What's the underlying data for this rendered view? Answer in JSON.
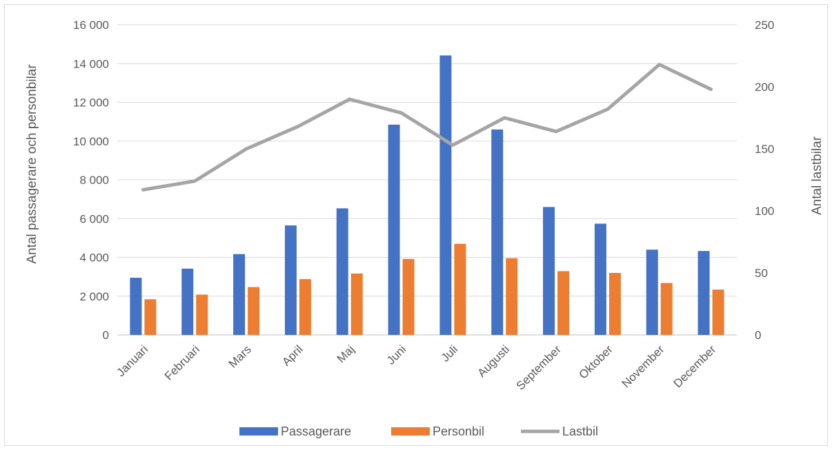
{
  "chart_data": {
    "type": "bar",
    "categories": [
      "Januari",
      "Februari",
      "Mars",
      "April",
      "Maj",
      "Juni",
      "Juli",
      "Augusti",
      "September",
      "Oktober",
      "November",
      "December"
    ],
    "series": [
      {
        "name": "Passagerare",
        "kind": "bar",
        "axis": "left",
        "color": "#4472C4",
        "values": [
          2950,
          3420,
          4170,
          5650,
          6530,
          10850,
          14420,
          10600,
          6600,
          5740,
          4400,
          4330
        ]
      },
      {
        "name": "Personbil",
        "kind": "bar",
        "axis": "left",
        "color": "#ED7D31",
        "values": [
          1840,
          2080,
          2470,
          2880,
          3170,
          3920,
          4700,
          3960,
          3290,
          3200,
          2680,
          2340
        ]
      },
      {
        "name": "Lastbil",
        "kind": "line",
        "axis": "right",
        "color": "#A5A5A5",
        "values": [
          117,
          124,
          150,
          168,
          190,
          179,
          153,
          175,
          164,
          182,
          218,
          198
        ]
      }
    ],
    "ylabel": "Antal passagerare och personbilar",
    "y2label": "Antal lastbilar",
    "ylim": [
      0,
      16000
    ],
    "y2lim": [
      0,
      250
    ],
    "yticks": [
      "0",
      "2 000",
      "4 000",
      "6 000",
      "8 000",
      "10 000",
      "12 000",
      "14 000",
      "16 000"
    ],
    "y2ticks": [
      "0",
      "50",
      "100",
      "150",
      "200",
      "250"
    ],
    "grid": true,
    "legend_position": "bottom"
  }
}
